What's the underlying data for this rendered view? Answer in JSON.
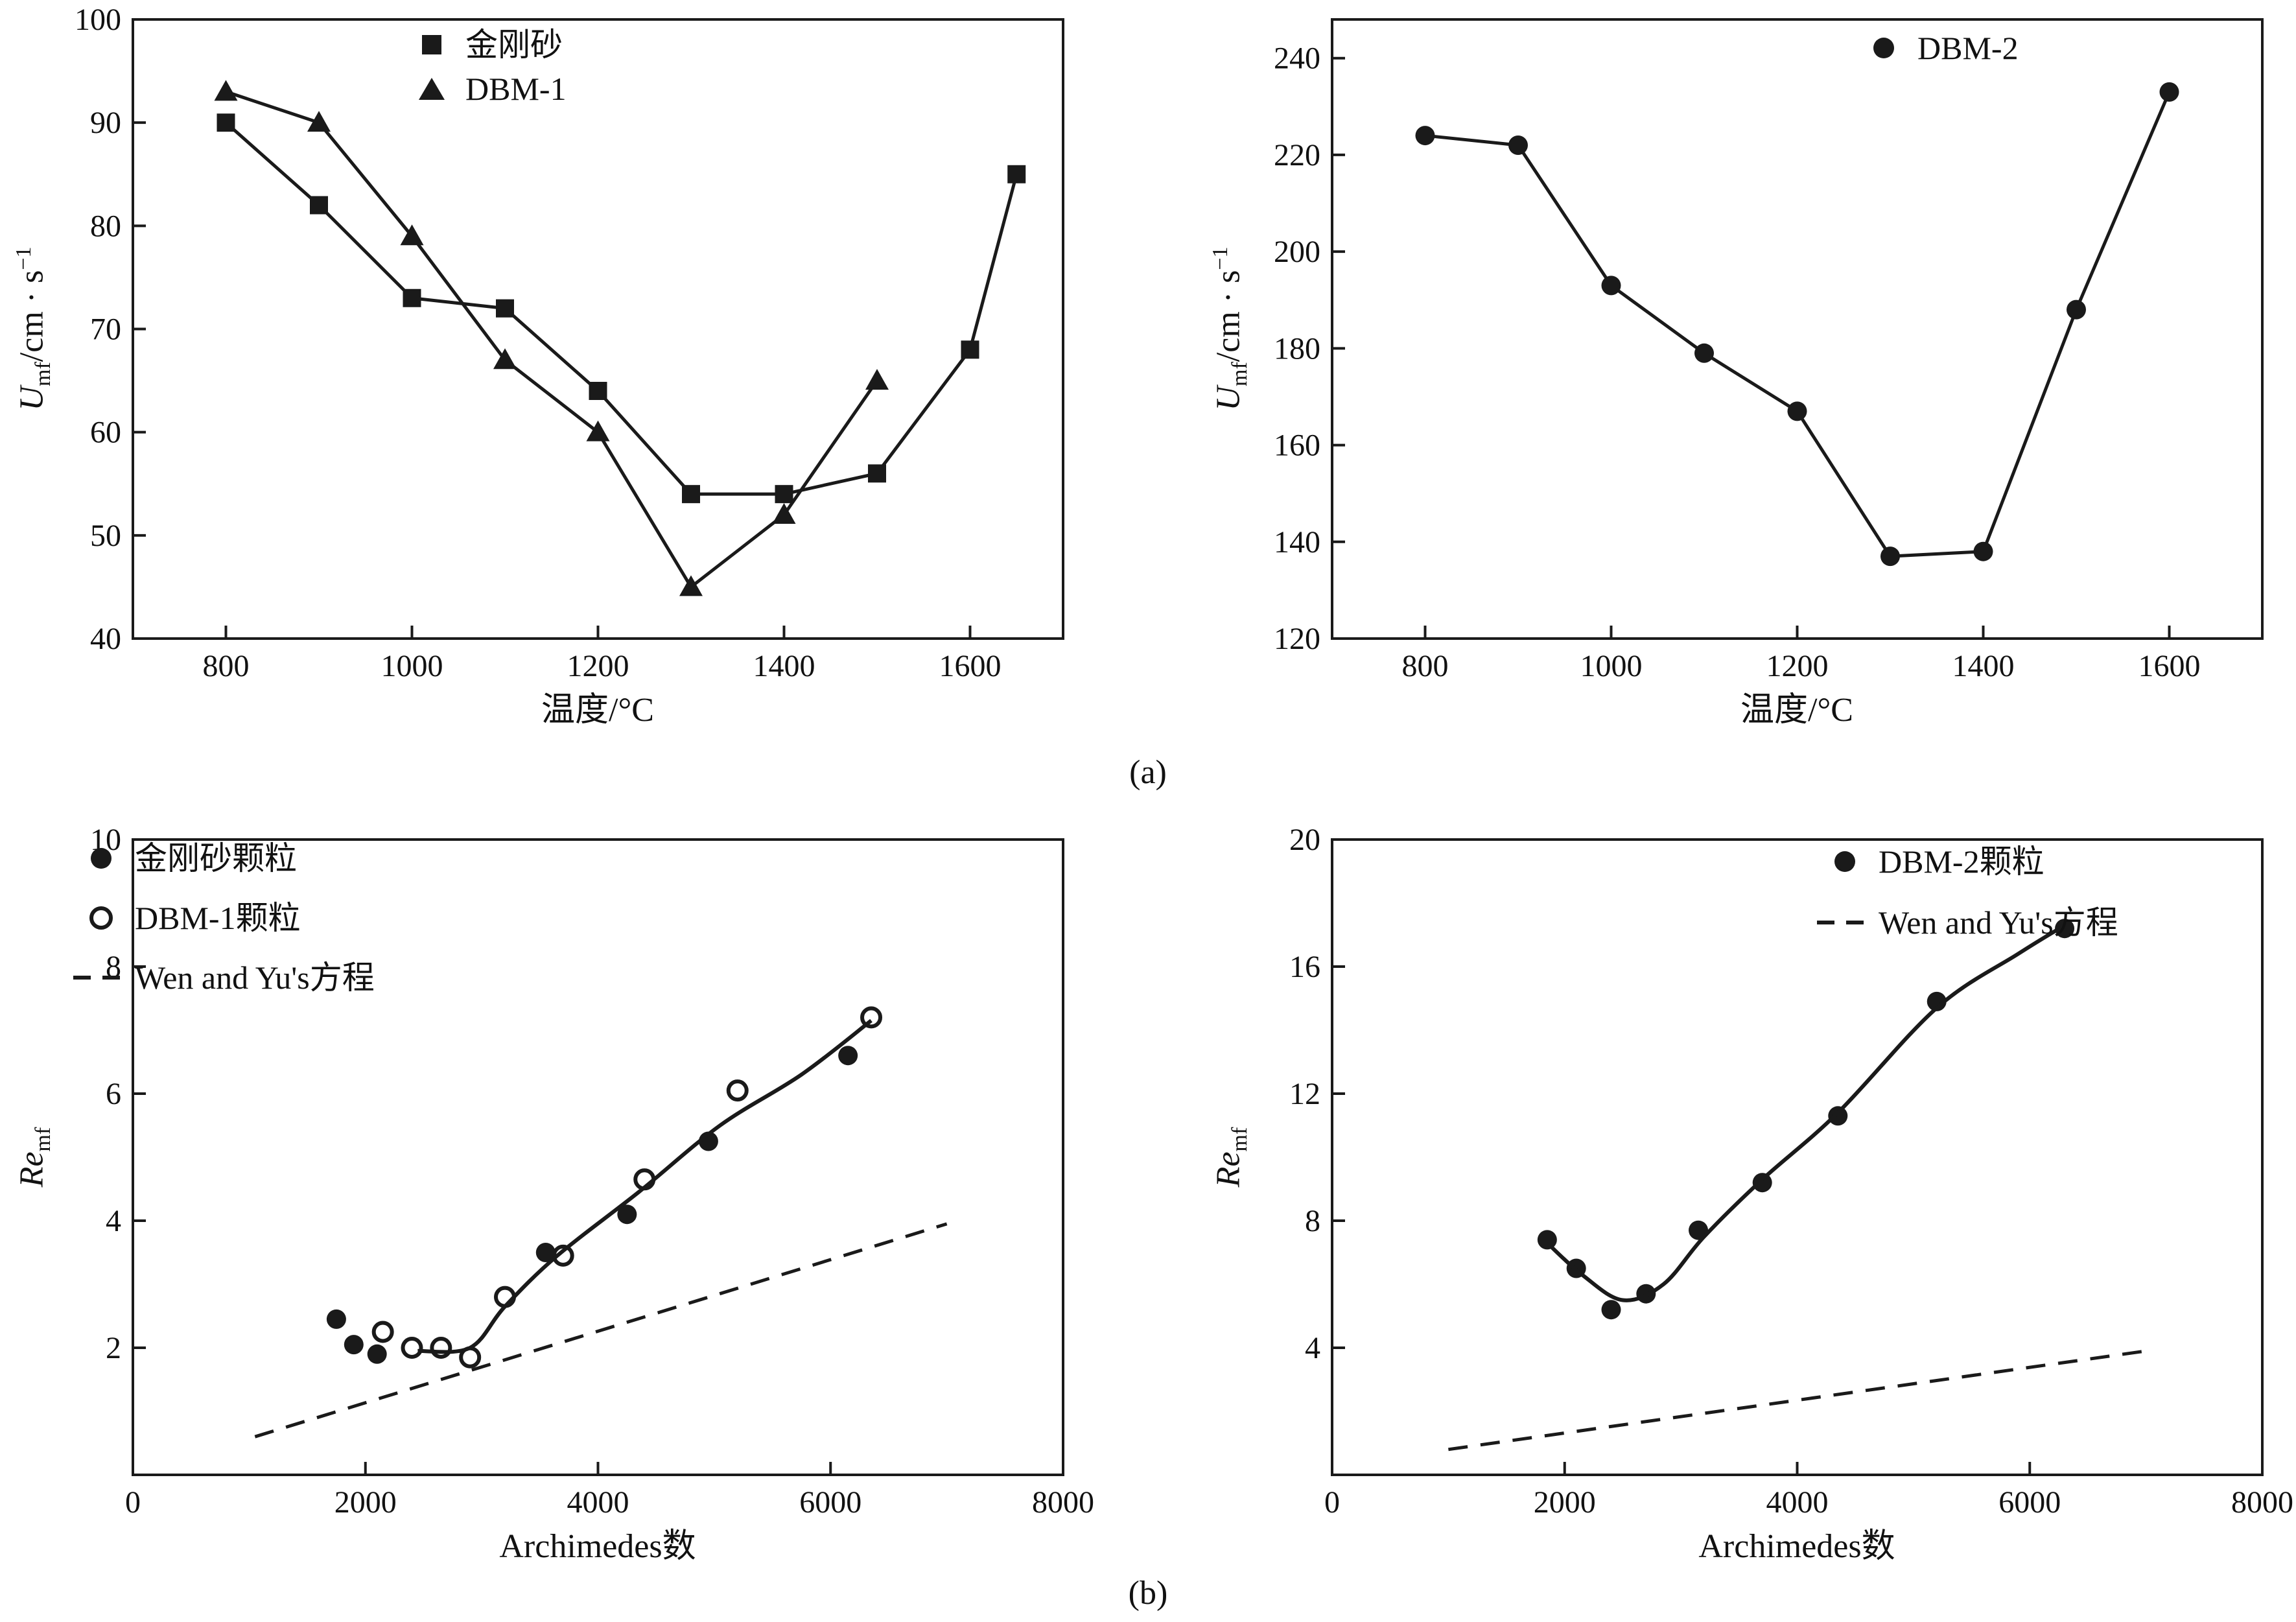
{
  "figure": {
    "row_label_a": "(a)",
    "row_label_b": "(b)"
  },
  "chart_data": [
    {
      "type": "line",
      "title": "",
      "xlabel": "温度/°C",
      "ylabel": {
        "var": "U",
        "sub": "mf",
        "rest": "/cm · s",
        "sup": "−1"
      },
      "xlim": [
        700,
        1700
      ],
      "ylim": [
        40,
        100
      ],
      "xticks": [
        800,
        1000,
        1200,
        1400,
        1600
      ],
      "yticks": [
        40,
        50,
        60,
        70,
        80,
        90,
        100
      ],
      "grid": false,
      "legend_position": "top-center",
      "series": [
        {
          "name": "金刚砂",
          "marker": "filled-square",
          "line": "solid",
          "x": [
            800,
            900,
            1000,
            1100,
            1200,
            1300,
            1400,
            1500,
            1600,
            1650
          ],
          "y": [
            90,
            82,
            73,
            72,
            64,
            54,
            54,
            56,
            68,
            85
          ]
        },
        {
          "name": "DBM-1",
          "marker": "filled-triangle",
          "line": "solid",
          "x": [
            800,
            900,
            1000,
            1100,
            1200,
            1300,
            1400,
            1500
          ],
          "y": [
            93,
            90,
            79,
            67,
            60,
            45,
            52,
            65
          ]
        }
      ]
    },
    {
      "type": "line",
      "title": "",
      "xlabel": "温度/°C",
      "ylabel": {
        "var": "U",
        "sub": "mf",
        "rest": "/cm · s",
        "sup": "−1"
      },
      "xlim": [
        700,
        1700
      ],
      "ylim": [
        120,
        248
      ],
      "xticks": [
        800,
        1000,
        1200,
        1400,
        1600
      ],
      "yticks": [
        120,
        140,
        160,
        180,
        200,
        220,
        240
      ],
      "grid": false,
      "legend_position": "top-center",
      "series": [
        {
          "name": "DBM-2",
          "marker": "filled-circle",
          "line": "solid",
          "x": [
            800,
            900,
            1000,
            1100,
            1200,
            1300,
            1400,
            1500,
            1600
          ],
          "y": [
            224,
            222,
            193,
            179,
            167,
            137,
            138,
            188,
            233
          ]
        }
      ]
    },
    {
      "type": "scatter",
      "title": "",
      "xlabel": "Archimedes数",
      "ylabel": {
        "var": "Re",
        "sub": "mf"
      },
      "xlim": [
        0,
        8000
      ],
      "ylim": [
        0,
        10
      ],
      "xticks": [
        0,
        2000,
        4000,
        6000,
        8000
      ],
      "yticks": [
        2,
        4,
        6,
        8,
        10
      ],
      "grid": false,
      "legend_position": "top-left",
      "series": [
        {
          "name": "金刚砂颗粒",
          "marker": "filled-circle",
          "line": "none",
          "x": [
            1750,
            1900,
            2100,
            3550,
            4250,
            4950,
            6150
          ],
          "y": [
            2.45,
            2.05,
            1.9,
            3.5,
            4.1,
            5.25,
            6.6
          ]
        },
        {
          "name": "DBM-1颗粒",
          "marker": "open-circle",
          "line": "none",
          "x": [
            2150,
            2400,
            2650,
            2900,
            3200,
            3700,
            4400,
            5200,
            6350
          ],
          "y": [
            2.25,
            2.0,
            2.0,
            1.85,
            2.8,
            3.45,
            4.65,
            6.05,
            7.2
          ]
        },
        {
          "name": "",
          "marker": "none",
          "line": "smooth",
          "x": [
            2450,
            2900,
            3200,
            3650,
            4350,
            5050,
            5750,
            6350
          ],
          "y": [
            1.95,
            2.0,
            2.65,
            3.45,
            4.45,
            5.5,
            6.3,
            7.15
          ]
        },
        {
          "name": "Wen and Yu's方程",
          "marker": "none",
          "line": "dashed",
          "x": [
            1050,
            7000
          ],
          "y": [
            0.6,
            3.95
          ]
        }
      ]
    },
    {
      "type": "scatter",
      "title": "",
      "xlabel": "Archimedes数",
      "ylabel": {
        "var": "Re",
        "sub": "mf"
      },
      "xlim": [
        0,
        8000
      ],
      "ylim": [
        0,
        20
      ],
      "xticks": [
        0,
        2000,
        4000,
        6000,
        8000
      ],
      "yticks": [
        4,
        8,
        12,
        16,
        20
      ],
      "grid": false,
      "legend_position": "top-left",
      "series": [
        {
          "name": "DBM-2颗粒",
          "marker": "filled-circle",
          "line": "none",
          "x": [
            1850,
            2100,
            2400,
            2700,
            3150,
            3700,
            4350,
            5200,
            6300
          ],
          "y": [
            7.4,
            6.5,
            5.2,
            5.7,
            7.7,
            9.2,
            11.3,
            14.9,
            17.2
          ]
        },
        {
          "name": "",
          "marker": "none",
          "line": "smooth",
          "x": [
            1850,
            2150,
            2500,
            2850,
            3200,
            3700,
            4350,
            5200,
            5900,
            6300
          ],
          "y": [
            7.3,
            6.3,
            5.5,
            6.0,
            7.5,
            9.3,
            11.4,
            14.7,
            16.4,
            17.3
          ]
        },
        {
          "name": "Wen and Yu's方程",
          "marker": "none",
          "line": "dashed",
          "x": [
            1000,
            7000
          ],
          "y": [
            0.8,
            3.9
          ]
        }
      ]
    }
  ]
}
